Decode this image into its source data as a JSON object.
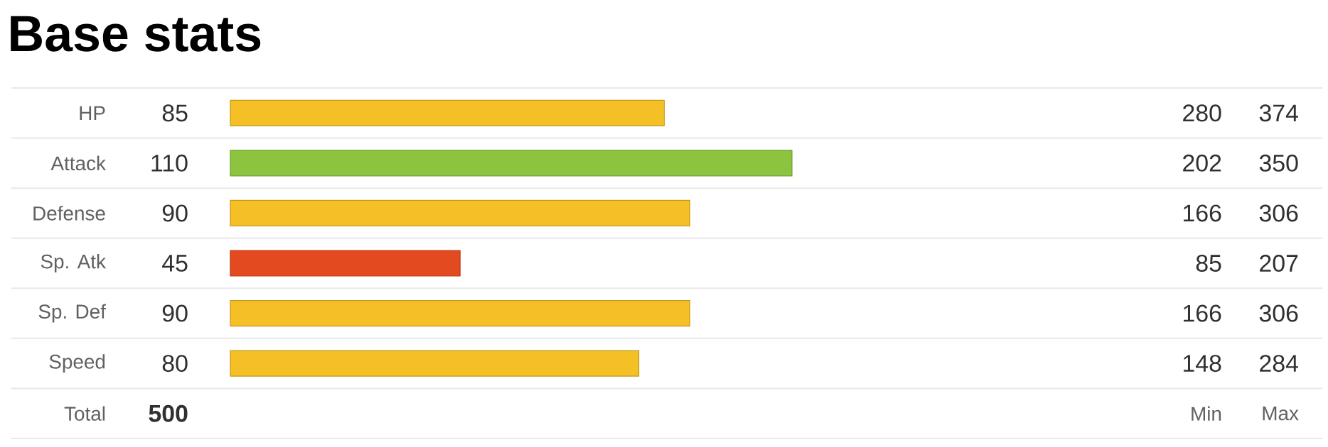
{
  "chart_data": [
    {
      "type": "bar",
      "title": "Base stats",
      "orientation": "horizontal",
      "data_labels": true,
      "categories": [
        "HP",
        "Attack",
        "Defense",
        "Sp. Atk",
        "Sp. Def",
        "Speed"
      ],
      "values": [
        85,
        110,
        90,
        45,
        90,
        80
      ],
      "colors": [
        "#f5c026",
        "#8dc43f",
        "#f5c026",
        "#e44a1f",
        "#f5c026",
        "#f5c026"
      ],
      "annotations": [
        "Total",
        "500"
      ]
    },
    {
      "type": "other",
      "annotations": [
        "280",
        "374",
        "202",
        "350",
        "166",
        "306",
        "85",
        "207",
        "166",
        "306",
        "148",
        "284",
        "Min",
        "Max"
      ]
    }
  ]
}
